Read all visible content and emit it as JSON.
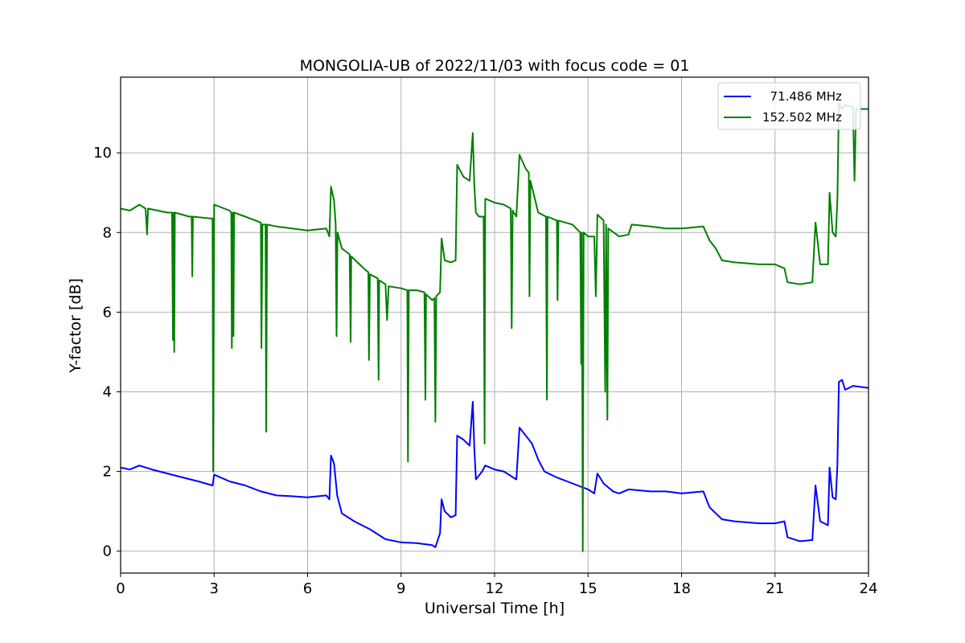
{
  "chart_data": {
    "type": "line",
    "title": "MONGOLIA-UB of 2022/11/03 with focus code = 01",
    "xlabel": "Universal Time [h]",
    "ylabel": "Y-factor [dB]",
    "xlim": [
      0,
      24
    ],
    "ylim": [
      -0.55,
      11.9
    ],
    "xticks": [
      0,
      3,
      6,
      9,
      12,
      15,
      18,
      21,
      24
    ],
    "yticks": [
      0,
      2,
      4,
      6,
      8,
      10
    ],
    "grid": true,
    "legend_position": "top-right",
    "series": [
      {
        "name": "  71.486 MHz",
        "color": "#0000ff",
        "points": [
          [
            0,
            2.1
          ],
          [
            0.3,
            2.05
          ],
          [
            0.6,
            2.15
          ],
          [
            1.0,
            2.05
          ],
          [
            1.5,
            1.95
          ],
          [
            2.0,
            1.85
          ],
          [
            2.5,
            1.75
          ],
          [
            2.95,
            1.65
          ],
          [
            3.0,
            1.92
          ],
          [
            3.5,
            1.75
          ],
          [
            4.0,
            1.65
          ],
          [
            4.5,
            1.5
          ],
          [
            5.0,
            1.4
          ],
          [
            5.5,
            1.38
          ],
          [
            6.0,
            1.35
          ],
          [
            6.6,
            1.4
          ],
          [
            6.7,
            1.3
          ],
          [
            6.75,
            2.4
          ],
          [
            6.85,
            2.2
          ],
          [
            6.95,
            1.4
          ],
          [
            7.1,
            0.95
          ],
          [
            7.5,
            0.75
          ],
          [
            8.0,
            0.55
          ],
          [
            8.5,
            0.3
          ],
          [
            9.0,
            0.22
          ],
          [
            9.5,
            0.2
          ],
          [
            10.0,
            0.15
          ],
          [
            10.1,
            0.1
          ],
          [
            10.25,
            0.45
          ],
          [
            10.3,
            1.3
          ],
          [
            10.4,
            1.0
          ],
          [
            10.6,
            0.85
          ],
          [
            10.75,
            0.9
          ],
          [
            10.8,
            2.9
          ],
          [
            11.0,
            2.8
          ],
          [
            11.2,
            2.65
          ],
          [
            11.3,
            3.75
          ],
          [
            11.35,
            2.6
          ],
          [
            11.4,
            1.8
          ],
          [
            11.6,
            2.0
          ],
          [
            11.7,
            2.15
          ],
          [
            12.0,
            2.05
          ],
          [
            12.3,
            2.0
          ],
          [
            12.7,
            1.8
          ],
          [
            12.8,
            3.1
          ],
          [
            13.0,
            2.9
          ],
          [
            13.2,
            2.7
          ],
          [
            13.4,
            2.3
          ],
          [
            13.6,
            2.0
          ],
          [
            14.0,
            1.85
          ],
          [
            14.5,
            1.7
          ],
          [
            15.0,
            1.55
          ],
          [
            15.2,
            1.45
          ],
          [
            15.3,
            1.95
          ],
          [
            15.5,
            1.7
          ],
          [
            15.8,
            1.5
          ],
          [
            16.0,
            1.45
          ],
          [
            16.3,
            1.55
          ],
          [
            17.0,
            1.5
          ],
          [
            17.5,
            1.5
          ],
          [
            18.0,
            1.45
          ],
          [
            18.7,
            1.5
          ],
          [
            18.9,
            1.1
          ],
          [
            19.1,
            0.95
          ],
          [
            19.3,
            0.8
          ],
          [
            19.7,
            0.75
          ],
          [
            20.5,
            0.7
          ],
          [
            21.0,
            0.7
          ],
          [
            21.3,
            0.75
          ],
          [
            21.4,
            0.35
          ],
          [
            21.8,
            0.25
          ],
          [
            22.2,
            0.28
          ],
          [
            22.3,
            1.65
          ],
          [
            22.45,
            0.75
          ],
          [
            22.7,
            0.65
          ],
          [
            22.75,
            2.1
          ],
          [
            22.85,
            1.35
          ],
          [
            22.95,
            1.3
          ],
          [
            23.0,
            2.15
          ],
          [
            23.05,
            4.25
          ],
          [
            23.15,
            4.3
          ],
          [
            23.25,
            4.05
          ],
          [
            23.5,
            4.15
          ],
          [
            24.0,
            4.1
          ]
        ]
      },
      {
        "name": "152.502 MHz",
        "color": "#008000",
        "points": [
          [
            0,
            8.6
          ],
          [
            0.3,
            8.55
          ],
          [
            0.6,
            8.7
          ],
          [
            0.8,
            8.6
          ],
          [
            0.85,
            7.95
          ],
          [
            0.88,
            8.6
          ],
          [
            1.5,
            8.5
          ],
          [
            1.65,
            8.5
          ],
          [
            1.68,
            5.3
          ],
          [
            1.7,
            8.5
          ],
          [
            1.72,
            5.0
          ],
          [
            1.74,
            8.5
          ],
          [
            2.2,
            8.4
          ],
          [
            2.28,
            8.4
          ],
          [
            2.3,
            6.9
          ],
          [
            2.32,
            8.4
          ],
          [
            2.9,
            8.35
          ],
          [
            2.95,
            8.35
          ],
          [
            2.97,
            2.0
          ],
          [
            3.0,
            8.7
          ],
          [
            3.5,
            8.55
          ],
          [
            3.55,
            8.5
          ],
          [
            3.57,
            5.1
          ],
          [
            3.6,
            8.5
          ],
          [
            3.62,
            5.4
          ],
          [
            3.64,
            8.5
          ],
          [
            4.0,
            8.4
          ],
          [
            4.5,
            8.25
          ],
          [
            4.52,
            5.1
          ],
          [
            4.55,
            8.2
          ],
          [
            4.65,
            8.2
          ],
          [
            4.67,
            3.0
          ],
          [
            4.7,
            8.2
          ],
          [
            5.0,
            8.15
          ],
          [
            5.5,
            8.1
          ],
          [
            6.0,
            8.05
          ],
          [
            6.6,
            8.1
          ],
          [
            6.7,
            7.9
          ],
          [
            6.75,
            9.15
          ],
          [
            6.85,
            8.8
          ],
          [
            6.9,
            8.2
          ],
          [
            6.93,
            5.4
          ],
          [
            6.96,
            8.0
          ],
          [
            7.1,
            7.6
          ],
          [
            7.35,
            7.45
          ],
          [
            7.38,
            5.25
          ],
          [
            7.4,
            7.4
          ],
          [
            7.8,
            7.1
          ],
          [
            7.95,
            7.0
          ],
          [
            7.97,
            4.8
          ],
          [
            8.0,
            6.95
          ],
          [
            8.25,
            6.85
          ],
          [
            8.28,
            4.3
          ],
          [
            8.3,
            6.8
          ],
          [
            8.5,
            6.7
          ],
          [
            8.55,
            5.8
          ],
          [
            8.6,
            6.65
          ],
          [
            9.0,
            6.6
          ],
          [
            9.2,
            6.55
          ],
          [
            9.22,
            2.25
          ],
          [
            9.25,
            6.55
          ],
          [
            9.5,
            6.55
          ],
          [
            9.75,
            6.5
          ],
          [
            9.78,
            3.8
          ],
          [
            9.8,
            6.45
          ],
          [
            10.0,
            6.3
          ],
          [
            10.07,
            6.35
          ],
          [
            10.1,
            3.25
          ],
          [
            10.13,
            6.4
          ],
          [
            10.25,
            6.5
          ],
          [
            10.3,
            7.85
          ],
          [
            10.4,
            7.3
          ],
          [
            10.6,
            7.25
          ],
          [
            10.75,
            7.3
          ],
          [
            10.8,
            9.7
          ],
          [
            11.0,
            9.4
          ],
          [
            11.2,
            9.3
          ],
          [
            11.3,
            10.5
          ],
          [
            11.35,
            9.2
          ],
          [
            11.4,
            8.5
          ],
          [
            11.5,
            8.4
          ],
          [
            11.65,
            8.4
          ],
          [
            11.68,
            2.7
          ],
          [
            11.7,
            8.85
          ],
          [
            12.0,
            8.75
          ],
          [
            12.3,
            8.7
          ],
          [
            12.52,
            8.6
          ],
          [
            12.55,
            5.6
          ],
          [
            12.58,
            8.55
          ],
          [
            12.7,
            8.4
          ],
          [
            12.8,
            9.95
          ],
          [
            13.0,
            9.6
          ],
          [
            13.1,
            9.5
          ],
          [
            13.12,
            6.4
          ],
          [
            13.15,
            9.3
          ],
          [
            13.4,
            8.5
          ],
          [
            13.65,
            8.4
          ],
          [
            13.68,
            3.8
          ],
          [
            13.7,
            8.4
          ],
          [
            14.0,
            8.3
          ],
          [
            14.02,
            6.3
          ],
          [
            14.05,
            8.3
          ],
          [
            14.5,
            8.2
          ],
          [
            14.75,
            8.0
          ],
          [
            14.78,
            4.7
          ],
          [
            14.8,
            8.0
          ],
          [
            14.83,
            0.0
          ],
          [
            14.86,
            8.0
          ],
          [
            15.0,
            7.9
          ],
          [
            15.2,
            7.9
          ],
          [
            15.25,
            6.4
          ],
          [
            15.3,
            8.45
          ],
          [
            15.5,
            8.3
          ],
          [
            15.55,
            4.0
          ],
          [
            15.58,
            8.2
          ],
          [
            15.62,
            3.3
          ],
          [
            15.65,
            8.1
          ],
          [
            16.0,
            7.9
          ],
          [
            16.3,
            7.95
          ],
          [
            16.4,
            8.2
          ],
          [
            17.0,
            8.15
          ],
          [
            17.5,
            8.1
          ],
          [
            18.0,
            8.1
          ],
          [
            18.7,
            8.15
          ],
          [
            18.9,
            7.8
          ],
          [
            19.1,
            7.6
          ],
          [
            19.3,
            7.3
          ],
          [
            19.7,
            7.25
          ],
          [
            20.5,
            7.2
          ],
          [
            21.0,
            7.2
          ],
          [
            21.3,
            7.1
          ],
          [
            21.4,
            6.75
          ],
          [
            21.8,
            6.7
          ],
          [
            22.2,
            6.75
          ],
          [
            22.3,
            8.25
          ],
          [
            22.45,
            7.2
          ],
          [
            22.7,
            7.2
          ],
          [
            22.75,
            9.0
          ],
          [
            22.85,
            8.0
          ],
          [
            22.95,
            7.9
          ],
          [
            23.0,
            8.8
          ],
          [
            23.05,
            11.25
          ],
          [
            23.15,
            11.1
          ],
          [
            23.25,
            11.2
          ],
          [
            23.5,
            11.15
          ],
          [
            23.55,
            9.3
          ],
          [
            23.6,
            11.1
          ],
          [
            24.0,
            11.1
          ]
        ]
      }
    ]
  }
}
